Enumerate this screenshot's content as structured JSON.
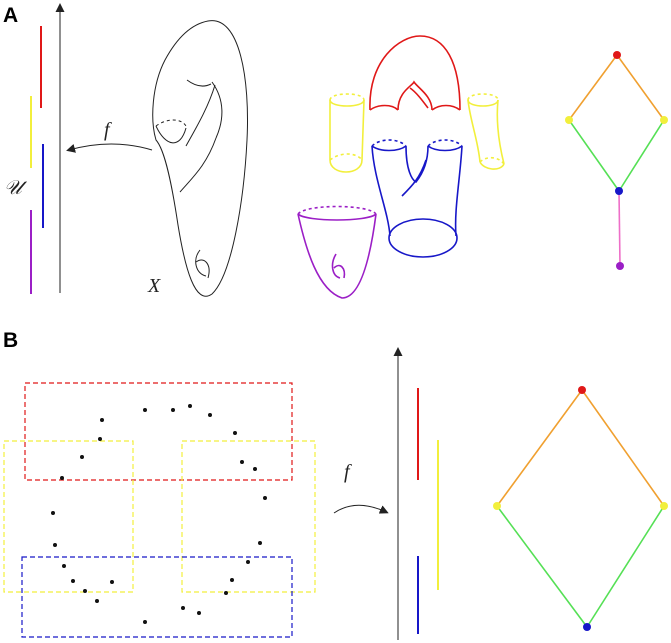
{
  "panels": {
    "a": {
      "label": "A",
      "cover_symbol": "𝒰",
      "map_symbol": "f",
      "space_symbol": "X",
      "colors": {
        "red": "#e01818",
        "yellow": "#f2ef3c",
        "blue": "#1717c8",
        "purple": "#9b1fc6",
        "orange": "#f0a030",
        "green": "#55e055",
        "pink": "#ee6fc8"
      }
    },
    "b": {
      "label": "B",
      "map_symbol": "f",
      "colors": {
        "red": "#e01818",
        "yellow": "#f2ef3c",
        "blue": "#1717c8",
        "orange": "#f0a030",
        "green": "#55e055"
      }
    }
  }
}
